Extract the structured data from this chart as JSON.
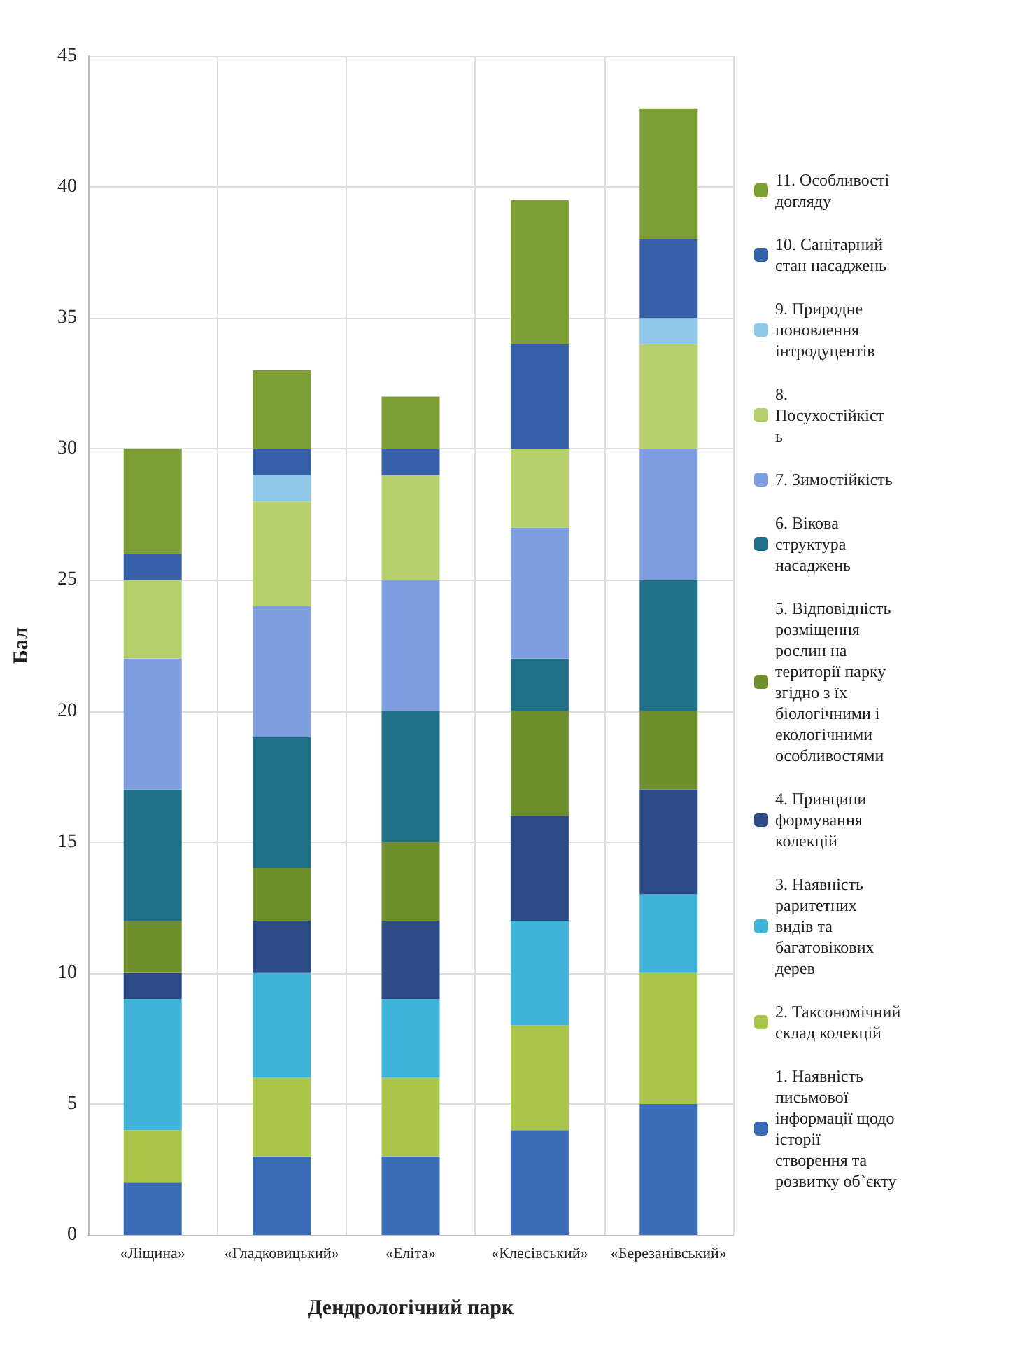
{
  "chart_data": {
    "type": "bar",
    "stacked": true,
    "xlabel": "Дендрологічний парк",
    "ylabel": "Бал",
    "categories": [
      "«Ліщина»",
      "«Гладковицький»",
      "«Еліта»",
      "«Клесівський»",
      "«Березанівський»"
    ],
    "ylim": [
      0,
      45
    ],
    "yticks": [
      0,
      5,
      10,
      15,
      20,
      25,
      30,
      35,
      40,
      45
    ],
    "grid": true,
    "legend": "right",
    "series": [
      {
        "name": "1. Наявність письмової інформації щодо історії створення та розвитку об`єкту",
        "color": "#3b6cb7",
        "values": [
          2,
          3,
          3,
          4,
          5
        ]
      },
      {
        "name": "2. Таксономічний склад колекцій",
        "color": "#a9c64a",
        "values": [
          2,
          3,
          3,
          4,
          5
        ]
      },
      {
        "name": "3. Наявність раритетних видів та багатовікових дерев",
        "color": "#3fb4d8",
        "values": [
          5,
          4,
          3,
          4,
          3
        ]
      },
      {
        "name": "4. Принципи формування колекцій",
        "color": "#2b4a86",
        "values": [
          1,
          2,
          3,
          4,
          4
        ]
      },
      {
        "name": "5. Відповідність розміщення рослин на території парку згідно з їх біологічними і екологічними особливостями",
        "color": "#6f8f2e",
        "values": [
          2,
          2,
          3,
          4,
          3
        ]
      },
      {
        "name": "6. Вікова структура насаджень",
        "color": "#1f6f87",
        "values": [
          5,
          5,
          5,
          2,
          5
        ]
      },
      {
        "name": "7. Зимостійкість",
        "color": "#7f9ee0",
        "values": [
          5,
          5,
          5,
          5,
          5
        ]
      },
      {
        "name": "8. Посухостійкість",
        "color": "#b5cf6a",
        "values": [
          3,
          4,
          4,
          3,
          4
        ]
      },
      {
        "name": "9. Природне поновлення інтродуцентів",
        "color": "#8ec7e8",
        "values": [
          0,
          1,
          0,
          0,
          1
        ]
      },
      {
        "name": "10. Санітарний стан насаджень",
        "color": "#3560a8",
        "values": [
          1,
          1,
          1,
          4,
          3
        ]
      },
      {
        "name": "11. Особливості догляду",
        "color": "#7c9e34",
        "values": [
          4,
          3,
          2,
          5.5,
          5
        ]
      }
    ]
  }
}
